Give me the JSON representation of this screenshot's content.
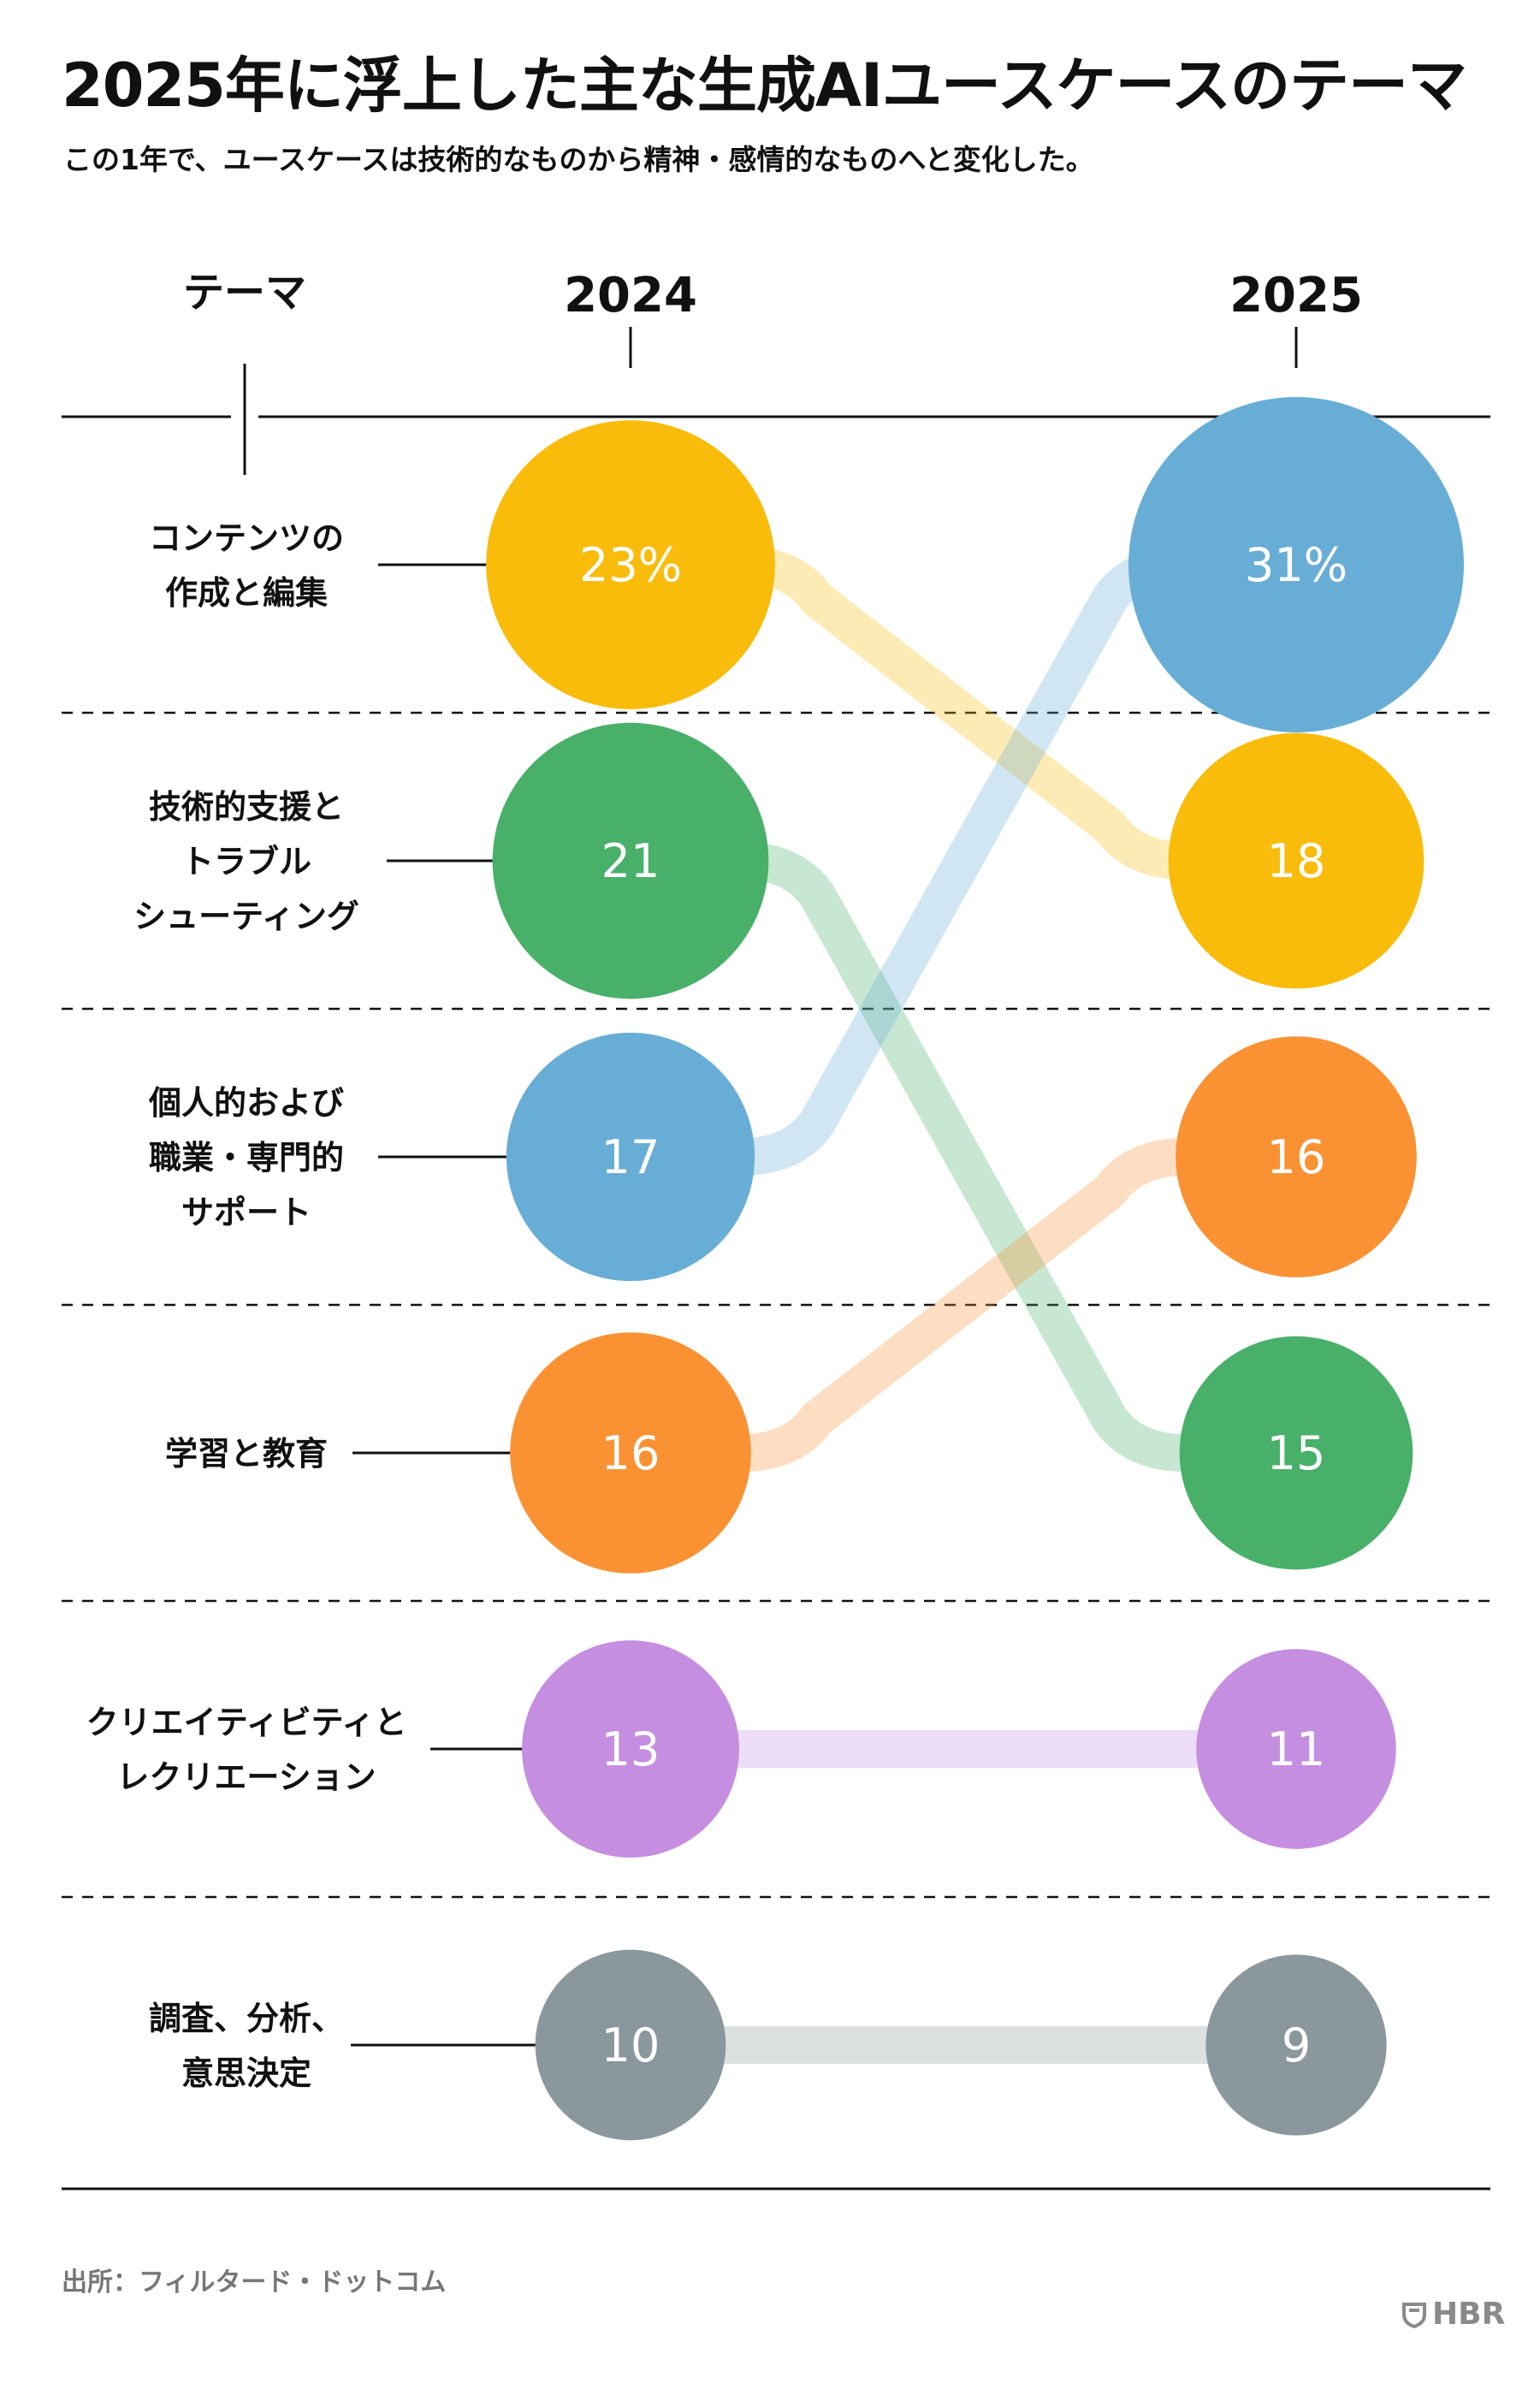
{
  "title": "2025年に浮上した主な生成AIユースケースのテーマ",
  "subtitle": "この1年で、ユースケースは技術的なものから精神・感情的なものへと変化した。",
  "source": "出所：フィルタード・ドットコム",
  "logo_text": "HBR",
  "chart_data": {
    "type": "bump",
    "column_header": "テーマ",
    "years": [
      "2024",
      "2025"
    ],
    "themes": [
      {
        "label_lines": [
          "コンテンツの",
          "作成と編集"
        ],
        "color": "#F9BC0B",
        "values": [
          23,
          18
        ],
        "value_labels": [
          "23%",
          "18"
        ]
      },
      {
        "label_lines": [
          "技術的支援と",
          "トラブル",
          "シューティング"
        ],
        "color": "#49B06A",
        "values": [
          21,
          15
        ],
        "value_labels": [
          "21",
          "15"
        ]
      },
      {
        "label_lines": [
          "個人的および",
          "職業・専門的",
          "サポート"
        ],
        "color": "#68ADD6",
        "values": [
          17,
          31
        ],
        "value_labels": [
          "17",
          "31%"
        ]
      },
      {
        "label_lines": [
          "学習と教育"
        ],
        "color": "#FA9234",
        "values": [
          16,
          16
        ],
        "value_labels": [
          "16",
          "16"
        ]
      },
      {
        "label_lines": [
          "クリエイティビティと",
          "レクリエーション"
        ],
        "color": "#C58EE0",
        "values": [
          13,
          11
        ],
        "value_labels": [
          "13",
          "11"
        ]
      },
      {
        "label_lines": [
          "調査、分析、",
          "意思決定"
        ],
        "color": "#8A979D",
        "values": [
          10,
          9
        ],
        "value_labels": [
          "10",
          "9"
        ]
      }
    ]
  }
}
